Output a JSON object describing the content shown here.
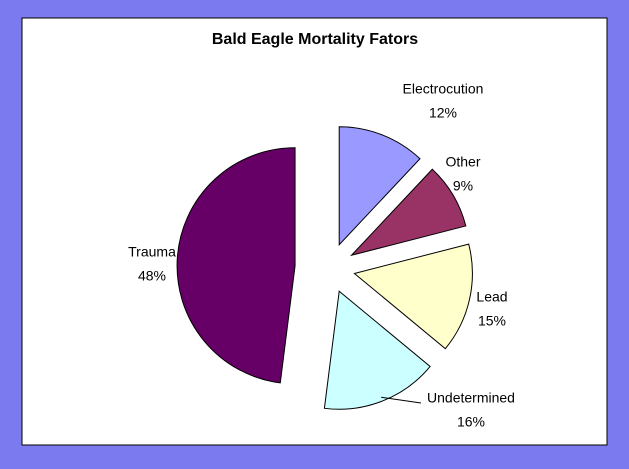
{
  "chart_data": {
    "type": "pie",
    "title": "Bald Eagle Mortality Fators",
    "categories": [
      "Electrocution",
      "Other",
      "Lead",
      "Undetermined",
      "Trauma"
    ],
    "values": [
      12,
      9,
      15,
      16,
      48
    ],
    "value_labels": [
      "12%",
      "9%",
      "15%",
      "16%",
      "48%"
    ],
    "colors": [
      "#9999ff",
      "#993366",
      "#ffffcc",
      "#ccffff",
      "#660066"
    ]
  }
}
